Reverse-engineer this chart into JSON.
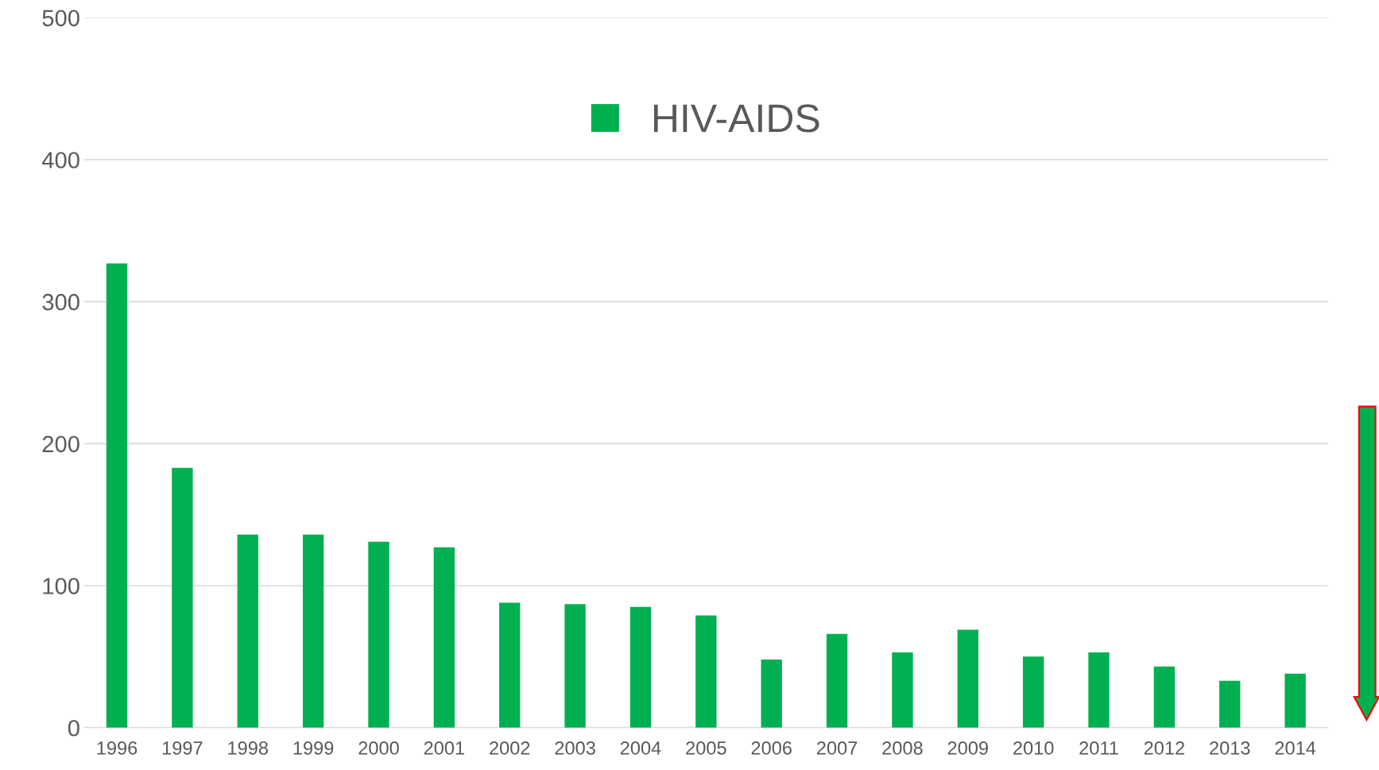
{
  "chart_data": {
    "type": "bar",
    "categories": [
      "1996",
      "1997",
      "1998",
      "1999",
      "2000",
      "2001",
      "2002",
      "2003",
      "2004",
      "2005",
      "2006",
      "2007",
      "2008",
      "2009",
      "2010",
      "2011",
      "2012",
      "2013",
      "2014"
    ],
    "series": [
      {
        "name": "HIV-AIDS",
        "color": "#00b050",
        "values": [
          327,
          183,
          136,
          136,
          131,
          127,
          88,
          87,
          85,
          79,
          48,
          66,
          53,
          69,
          50,
          53,
          43,
          33,
          38
        ]
      }
    ],
    "ylim": [
      0,
      500
    ],
    "yticks": [
      0,
      100,
      200,
      300,
      400,
      500
    ],
    "grid": "y",
    "legend": "top"
  }
}
